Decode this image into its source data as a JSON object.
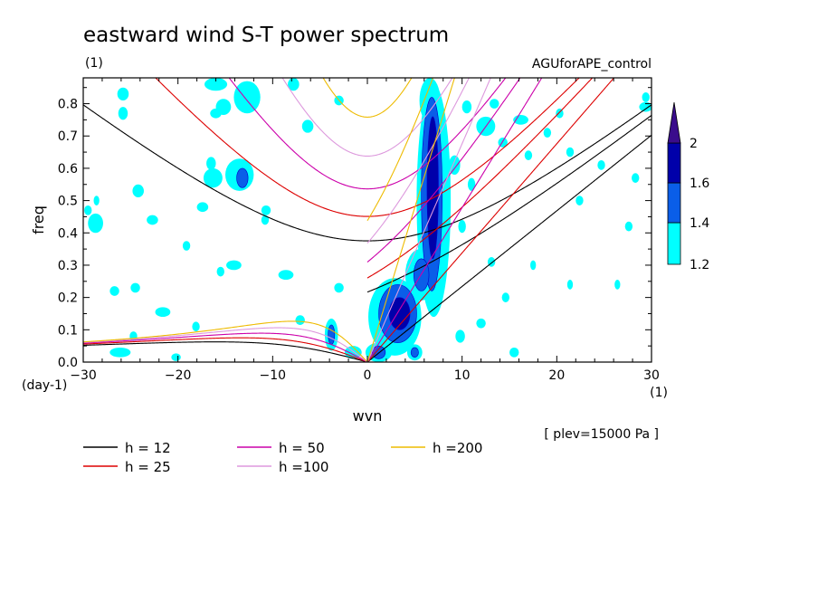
{
  "chart_data": {
    "type": "heatmap",
    "title": "eastward wind S-T power spectrum",
    "subtitle_left": "(1)",
    "subtitle_right": "AGUforAPE_control",
    "xlabel": "wvn",
    "ylabel": "freq",
    "x_unit": "(1)",
    "y_unit": "(day-1)",
    "annotation": "[ plev=15000 Pa ]",
    "xlim": [
      -30,
      30
    ],
    "ylim": [
      0,
      0.88
    ],
    "x_ticks": [
      -30,
      -20,
      -10,
      0,
      10,
      20,
      30
    ],
    "x_tick_labels": [
      "−30",
      "−20",
      "−10",
      "0",
      "10",
      "20",
      "30"
    ],
    "y_ticks": [
      0.0,
      0.1,
      0.2,
      0.3,
      0.4,
      0.5,
      0.6,
      0.7,
      0.8
    ],
    "y_tick_labels": [
      "0.0",
      "0.1",
      "0.2",
      "0.3",
      "0.4",
      "0.5",
      "0.6",
      "0.7",
      "0.8"
    ],
    "colorbar": {
      "levels": [
        "1.2",
        "1.4",
        "1.6",
        "2"
      ],
      "colors": [
        "#00ffff",
        "#0a5ee8",
        "#0000aa",
        "#3a0c8c"
      ]
    },
    "shading_colors": {
      "low": "#00ffff",
      "mid": "#0a5ee8",
      "high": "#0000aa",
      "peak": "#3a0c8c",
      "outline": "#0000cc"
    },
    "dispersion_curves": [
      {
        "name": "h = 12",
        "h": 12,
        "color": "#000000"
      },
      {
        "name": "h = 25",
        "h": 25,
        "color": "#dd0000"
      },
      {
        "name": "h = 50",
        "h": 50,
        "color": "#cc00aa"
      },
      {
        "name": "h =100",
        "h": 100,
        "color": "#dd99dd"
      },
      {
        "name": "h =200",
        "h": 200,
        "color": "#eebb00"
      }
    ],
    "regions": [
      {
        "level": 1,
        "x": 7,
        "y": 0.5,
        "rx": 1.8,
        "ry": 0.36
      },
      {
        "level": 2,
        "x": 6.8,
        "y": 0.52,
        "rx": 1.1,
        "ry": 0.3
      },
      {
        "level": 3,
        "x": 6.9,
        "y": 0.54,
        "rx": 0.6,
        "ry": 0.22
      },
      {
        "level": 1,
        "x": 6.6,
        "y": 0.81,
        "rx": 1.1,
        "ry": 0.07
      },
      {
        "level": 1,
        "x": 2.9,
        "y": 0.14,
        "rx": 2.8,
        "ry": 0.12
      },
      {
        "level": 2,
        "x": 3.2,
        "y": 0.15,
        "rx": 2.0,
        "ry": 0.09
      },
      {
        "level": 3,
        "x": 3.4,
        "y": 0.15,
        "rx": 1.1,
        "ry": 0.05
      },
      {
        "level": 1,
        "x": 5.6,
        "y": 0.27,
        "rx": 1.6,
        "ry": 0.08
      },
      {
        "level": 2,
        "x": 5.7,
        "y": 0.27,
        "rx": 0.8,
        "ry": 0.05
      },
      {
        "level": 1,
        "x": 1.2,
        "y": 0.03,
        "rx": 1.4,
        "ry": 0.03
      },
      {
        "level": 2,
        "x": 1.2,
        "y": 0.03,
        "rx": 0.7,
        "ry": 0.02
      },
      {
        "level": 1,
        "x": -1.5,
        "y": 0.03,
        "rx": 0.9,
        "ry": 0.02
      },
      {
        "level": 1,
        "x": -3.8,
        "y": 0.085,
        "rx": 0.7,
        "ry": 0.05
      },
      {
        "level": 2,
        "x": -3.8,
        "y": 0.085,
        "rx": 0.35,
        "ry": 0.03
      },
      {
        "level": 1,
        "x": 5.0,
        "y": 0.03,
        "rx": 0.8,
        "ry": 0.025
      },
      {
        "level": 2,
        "x": 5.0,
        "y": 0.03,
        "rx": 0.4,
        "ry": 0.015
      },
      {
        "level": 1,
        "x": -13.5,
        "y": 0.58,
        "rx": 1.5,
        "ry": 0.05
      },
      {
        "level": 2,
        "x": -13.2,
        "y": 0.57,
        "rx": 0.6,
        "ry": 0.03
      },
      {
        "level": 1,
        "x": -12.7,
        "y": 0.82,
        "rx": 1.4,
        "ry": 0.05
      },
      {
        "level": 1,
        "x": -15.2,
        "y": 0.79,
        "rx": 0.8,
        "ry": 0.025
      },
      {
        "level": 1,
        "x": -16.5,
        "y": 0.615,
        "rx": 0.5,
        "ry": 0.02
      },
      {
        "level": 1,
        "x": -16.3,
        "y": 0.57,
        "rx": 1.0,
        "ry": 0.03
      },
      {
        "level": 1,
        "x": -25.8,
        "y": 0.83,
        "rx": 0.6,
        "ry": 0.02
      },
      {
        "level": 1,
        "x": -25.8,
        "y": 0.77,
        "rx": 0.5,
        "ry": 0.02
      },
      {
        "level": 1,
        "x": -16.0,
        "y": 0.77,
        "rx": 0.6,
        "ry": 0.015
      },
      {
        "level": 1,
        "x": -16.0,
        "y": 0.86,
        "rx": 1.2,
        "ry": 0.02
      },
      {
        "level": 1,
        "x": -6.3,
        "y": 0.73,
        "rx": 0.6,
        "ry": 0.02
      },
      {
        "level": 1,
        "x": -7.8,
        "y": 0.86,
        "rx": 0.6,
        "ry": 0.02
      },
      {
        "level": 1,
        "x": -3.0,
        "y": 0.81,
        "rx": 0.5,
        "ry": 0.015
      },
      {
        "level": 1,
        "x": -24.2,
        "y": 0.53,
        "rx": 0.6,
        "ry": 0.02
      },
      {
        "level": 1,
        "x": -22.7,
        "y": 0.44,
        "rx": 0.6,
        "ry": 0.015
      },
      {
        "level": 1,
        "x": -28.7,
        "y": 0.43,
        "rx": 0.8,
        "ry": 0.03
      },
      {
        "level": 1,
        "x": -29.5,
        "y": 0.47,
        "rx": 0.4,
        "ry": 0.015
      },
      {
        "level": 1,
        "x": -17.4,
        "y": 0.48,
        "rx": 0.6,
        "ry": 0.015
      },
      {
        "level": 1,
        "x": -19.1,
        "y": 0.36,
        "rx": 0.4,
        "ry": 0.015
      },
      {
        "level": 1,
        "x": -10.7,
        "y": 0.47,
        "rx": 0.5,
        "ry": 0.015
      },
      {
        "level": 1,
        "x": -10.8,
        "y": 0.44,
        "rx": 0.4,
        "ry": 0.015
      },
      {
        "level": 1,
        "x": -14.1,
        "y": 0.3,
        "rx": 0.8,
        "ry": 0.015
      },
      {
        "level": 1,
        "x": -15.5,
        "y": 0.28,
        "rx": 0.4,
        "ry": 0.015
      },
      {
        "level": 1,
        "x": -21.6,
        "y": 0.155,
        "rx": 0.8,
        "ry": 0.015
      },
      {
        "level": 1,
        "x": -24.5,
        "y": 0.23,
        "rx": 0.5,
        "ry": 0.015
      },
      {
        "level": 1,
        "x": -26.7,
        "y": 0.22,
        "rx": 0.5,
        "ry": 0.015
      },
      {
        "level": 1,
        "x": -8.6,
        "y": 0.27,
        "rx": 0.8,
        "ry": 0.015
      },
      {
        "level": 1,
        "x": -3.0,
        "y": 0.23,
        "rx": 0.5,
        "ry": 0.015
      },
      {
        "level": 1,
        "x": -7.1,
        "y": 0.13,
        "rx": 0.5,
        "ry": 0.015
      },
      {
        "level": 1,
        "x": -18.1,
        "y": 0.11,
        "rx": 0.4,
        "ry": 0.015
      },
      {
        "level": 1,
        "x": -20.2,
        "y": 0.015,
        "rx": 0.5,
        "ry": 0.012
      },
      {
        "level": 1,
        "x": -26.1,
        "y": 0.03,
        "rx": 1.1,
        "ry": 0.015
      },
      {
        "level": 1,
        "x": -24.7,
        "y": 0.08,
        "rx": 0.4,
        "ry": 0.015
      },
      {
        "level": 1,
        "x": -28.6,
        "y": 0.5,
        "rx": 0.3,
        "ry": 0.015
      },
      {
        "level": 1,
        "x": 12.5,
        "y": 0.73,
        "rx": 1.0,
        "ry": 0.03
      },
      {
        "level": 1,
        "x": 13.4,
        "y": 0.8,
        "rx": 0.5,
        "ry": 0.015
      },
      {
        "level": 1,
        "x": 14.3,
        "y": 0.68,
        "rx": 0.5,
        "ry": 0.015
      },
      {
        "level": 1,
        "x": 16.2,
        "y": 0.75,
        "rx": 0.8,
        "ry": 0.015
      },
      {
        "level": 1,
        "x": 17.0,
        "y": 0.64,
        "rx": 0.4,
        "ry": 0.015
      },
      {
        "level": 1,
        "x": 19.0,
        "y": 0.71,
        "rx": 0.4,
        "ry": 0.015
      },
      {
        "level": 1,
        "x": 20.3,
        "y": 0.77,
        "rx": 0.4,
        "ry": 0.015
      },
      {
        "level": 1,
        "x": 21.4,
        "y": 0.65,
        "rx": 0.4,
        "ry": 0.015
      },
      {
        "level": 1,
        "x": 24.7,
        "y": 0.61,
        "rx": 0.4,
        "ry": 0.015
      },
      {
        "level": 1,
        "x": 22.4,
        "y": 0.5,
        "rx": 0.4,
        "ry": 0.015
      },
      {
        "level": 1,
        "x": 28.3,
        "y": 0.57,
        "rx": 0.4,
        "ry": 0.015
      },
      {
        "level": 1,
        "x": 27.6,
        "y": 0.42,
        "rx": 0.4,
        "ry": 0.015
      },
      {
        "level": 1,
        "x": 29.4,
        "y": 0.79,
        "rx": 0.7,
        "ry": 0.015
      },
      {
        "level": 1,
        "x": 29.4,
        "y": 0.82,
        "rx": 0.4,
        "ry": 0.015
      },
      {
        "level": 1,
        "x": 13.1,
        "y": 0.31,
        "rx": 0.4,
        "ry": 0.015
      },
      {
        "level": 1,
        "x": 14.6,
        "y": 0.2,
        "rx": 0.4,
        "ry": 0.015
      },
      {
        "level": 1,
        "x": 12.0,
        "y": 0.12,
        "rx": 0.5,
        "ry": 0.015
      },
      {
        "level": 1,
        "x": 17.5,
        "y": 0.3,
        "rx": 0.3,
        "ry": 0.015
      },
      {
        "level": 1,
        "x": 21.4,
        "y": 0.24,
        "rx": 0.3,
        "ry": 0.015
      },
      {
        "level": 1,
        "x": 26.4,
        "y": 0.24,
        "rx": 0.3,
        "ry": 0.015
      },
      {
        "level": 1,
        "x": 15.5,
        "y": 0.03,
        "rx": 0.5,
        "ry": 0.015
      },
      {
        "level": 1,
        "x": 9.2,
        "y": 0.61,
        "rx": 0.6,
        "ry": 0.03
      },
      {
        "level": 1,
        "x": 10.5,
        "y": 0.79,
        "rx": 0.5,
        "ry": 0.02
      },
      {
        "level": 1,
        "x": 11.0,
        "y": 0.55,
        "rx": 0.4,
        "ry": 0.02
      },
      {
        "level": 1,
        "x": 10.0,
        "y": 0.42,
        "rx": 0.4,
        "ry": 0.02
      },
      {
        "level": 1,
        "x": 9.8,
        "y": 0.08,
        "rx": 0.5,
        "ry": 0.02
      }
    ]
  }
}
